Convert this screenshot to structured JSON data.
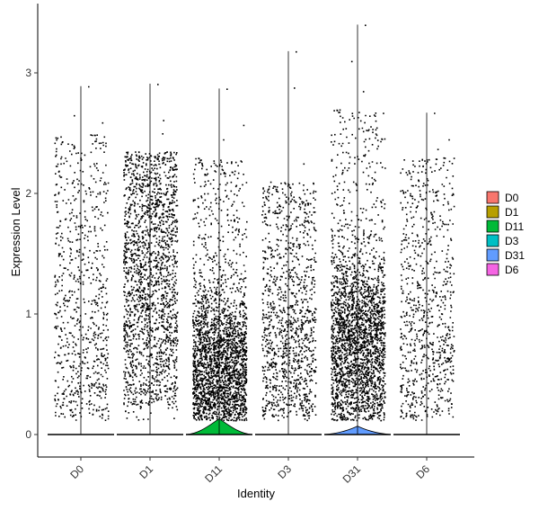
{
  "chart_data": {
    "type": "violin",
    "xlabel": "Identity",
    "ylabel": "Expression Level",
    "ylim": [
      -0.2,
      3.45
    ],
    "yticks": [
      0,
      1,
      2,
      3
    ],
    "categories": [
      "D0",
      "D1",
      "D11",
      "D3",
      "D31",
      "D6"
    ],
    "groups": [
      {
        "name": "D0",
        "color": "#F8766D",
        "max": 2.89,
        "spread_top": 2.5,
        "density": "low",
        "cells": 750
      },
      {
        "name": "D1",
        "color": "#B79F00",
        "max": 2.91,
        "spread_top": 2.35,
        "density": "medium",
        "cells": 1900
      },
      {
        "name": "D11",
        "color": "#00BA38",
        "max": 2.87,
        "spread_top": 2.3,
        "density": "high_low",
        "cells": 2700,
        "violin_peak": 0.13
      },
      {
        "name": "D3",
        "color": "#00BFC4",
        "max": 3.18,
        "spread_top": 2.1,
        "density": "low",
        "cells": 1150
      },
      {
        "name": "D31",
        "color": "#619CFF",
        "max": 3.4,
        "spread_top": 2.7,
        "density": "high_mid",
        "cells": 3300,
        "violin_peak": 0.07
      },
      {
        "name": "D6",
        "color": "#F564E3",
        "max": 2.67,
        "spread_top": 2.3,
        "density": "low",
        "cells": 800
      }
    ],
    "legend": {
      "position": "right"
    }
  }
}
